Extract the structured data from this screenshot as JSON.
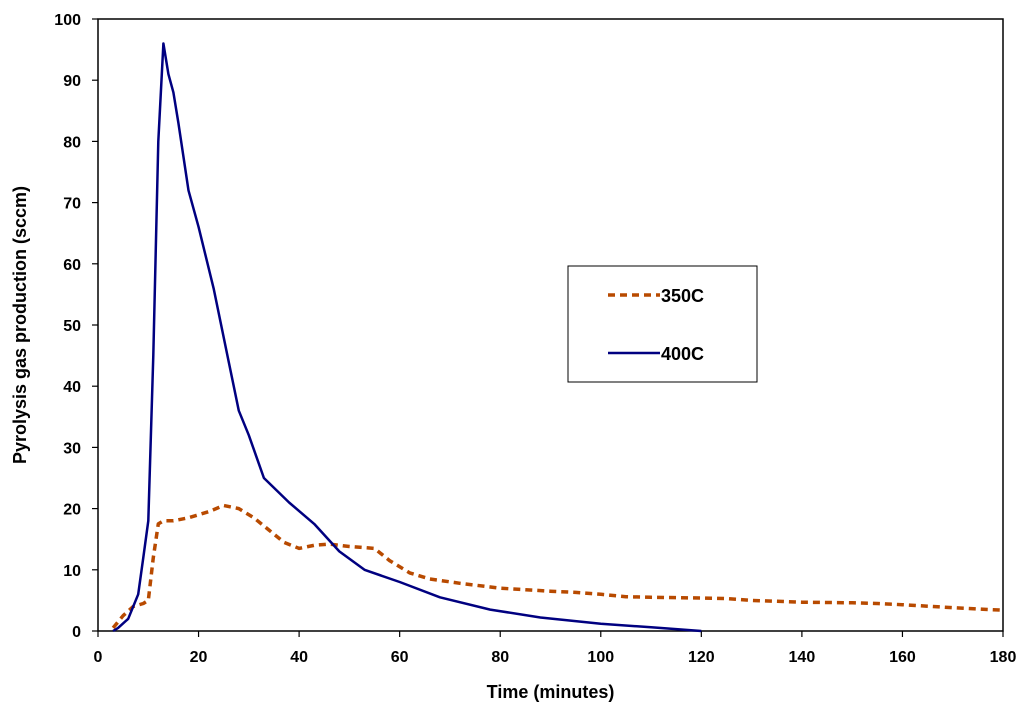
{
  "chart_data": {
    "type": "line",
    "title": "",
    "xlabel": "Time (minutes)",
    "ylabel": "Pyrolysis gas production (sccm)",
    "xlim": [
      0,
      180
    ],
    "ylim": [
      0,
      100
    ],
    "x_ticks": [
      0,
      20,
      40,
      60,
      80,
      100,
      120,
      140,
      160,
      180
    ],
    "y_ticks": [
      0,
      10,
      20,
      30,
      40,
      50,
      60,
      70,
      80,
      90,
      100
    ],
    "x_tick_labels": [
      "0",
      "20",
      "40",
      "60",
      "80",
      "100",
      "120",
      "140",
      "160",
      "180"
    ],
    "y_tick_labels": [
      "0",
      "10",
      "20",
      "30",
      "40",
      "50",
      "60",
      "70",
      "80",
      "90",
      "100"
    ],
    "grid": false,
    "legend_position": "right",
    "series": [
      {
        "name": "350C",
        "color": "#B84A00",
        "style": "dashed",
        "x": [
          3,
          5,
          7,
          9,
          10,
          11,
          12,
          13,
          15,
          18,
          22,
          25,
          28,
          31,
          34,
          37,
          40,
          43,
          46,
          50,
          55,
          58,
          62,
          66,
          72,
          80,
          90,
          95,
          100,
          105,
          110,
          120,
          125,
          130,
          140,
          150,
          155,
          160,
          170,
          180
        ],
        "y": [
          0.5,
          2.5,
          4,
          4.5,
          5,
          12,
          17.5,
          18,
          18,
          18.5,
          19.5,
          20.5,
          20,
          18.5,
          16.5,
          14.5,
          13.5,
          14,
          14.2,
          13.8,
          13.5,
          11.5,
          9.5,
          8.5,
          7.8,
          7,
          6.5,
          6.3,
          6,
          5.6,
          5.5,
          5.4,
          5.3,
          5,
          4.7,
          4.6,
          4.5,
          4.3,
          3.8,
          3.4
        ]
      },
      {
        "name": "400C",
        "color": "#000080",
        "style": "solid",
        "x": [
          3,
          4,
          6,
          8,
          9,
          10,
          11,
          12,
          13,
          14,
          15,
          16,
          18,
          20,
          23,
          26,
          28,
          30,
          33,
          38,
          43,
          48,
          53,
          60,
          68,
          78,
          88,
          100,
          110,
          120
        ],
        "y": [
          0,
          0.5,
          2,
          6,
          12,
          18,
          45,
          80,
          96,
          91,
          88,
          83,
          72,
          66,
          56,
          44,
          36,
          32,
          25,
          21,
          17.5,
          13,
          10,
          8,
          5.5,
          3.5,
          2.2,
          1.2,
          0.6,
          0
        ]
      }
    ]
  }
}
